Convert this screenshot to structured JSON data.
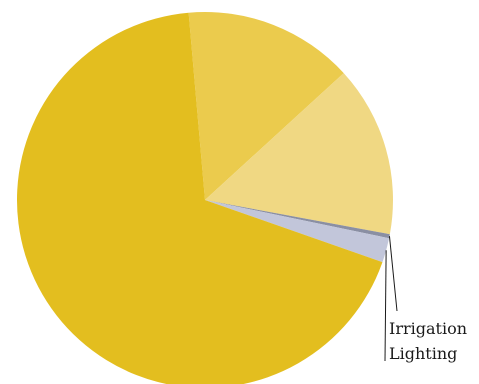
{
  "chart_data": {
    "type": "pie",
    "title": "",
    "start_angle_deg": 95,
    "slices": [
      {
        "label": "",
        "value": 14.6,
        "color": "#EBCB4D"
      },
      {
        "label": "",
        "value": 14.7,
        "color": "#F0D883"
      },
      {
        "label": "Irrigation",
        "value": 0.35,
        "color": "#8A8FA3"
      },
      {
        "label": "Lighting",
        "value": 2.1,
        "color": "#C2C6DA"
      },
      {
        "label": "",
        "value": 68.25,
        "color": "#E3BE1F"
      }
    ]
  }
}
